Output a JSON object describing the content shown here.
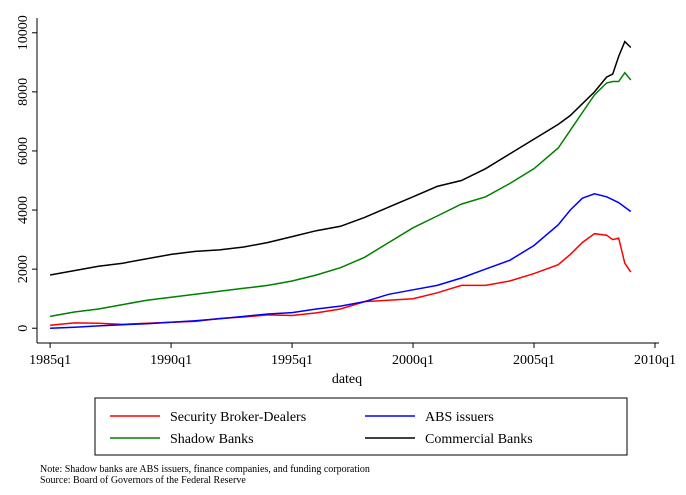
{
  "chart_data": {
    "type": "line",
    "x": [
      "1985q1",
      "1986q1",
      "1987q1",
      "1988q1",
      "1989q1",
      "1990q1",
      "1991q1",
      "1992q1",
      "1993q1",
      "1994q1",
      "1995q1",
      "1996q1",
      "1997q1",
      "1998q1",
      "1999q1",
      "2000q1",
      "2001q1",
      "2002q1",
      "2003q1",
      "2004q1",
      "2005q1",
      "2006q1",
      "2006q3",
      "2007q1",
      "2007q3",
      "2008q1",
      "2008q2",
      "2008q3",
      "2008q4",
      "2009q1"
    ],
    "series": [
      {
        "name": "Security Broker-Dealers",
        "color": "#ff0000",
        "values": [
          100,
          180,
          170,
          130,
          170,
          200,
          230,
          330,
          380,
          450,
          430,
          520,
          650,
          900,
          950,
          1000,
          1200,
          1450,
          1450,
          1600,
          1850,
          2150,
          2500,
          2900,
          3200,
          3150,
          3000,
          3050,
          2200,
          1900
        ]
      },
      {
        "name": "ABS issuers",
        "color": "#0000ff",
        "values": [
          0,
          30,
          80,
          120,
          150,
          200,
          250,
          320,
          400,
          480,
          530,
          650,
          750,
          900,
          1150,
          1300,
          1450,
          1700,
          2000,
          2300,
          2800,
          3500,
          4000,
          4400,
          4550,
          4450,
          4350,
          4250,
          4100,
          3950
        ]
      },
      {
        "name": "Shadow Banks",
        "color": "#008000",
        "values": [
          400,
          550,
          650,
          800,
          950,
          1050,
          1150,
          1250,
          1350,
          1450,
          1600,
          1800,
          2050,
          2400,
          2900,
          3400,
          3800,
          4200,
          4450,
          4900,
          5400,
          6100,
          6700,
          7300,
          7900,
          8300,
          8350,
          8350,
          8650,
          8400
        ]
      },
      {
        "name": "Commercial Banks",
        "color": "#000000",
        "values": [
          1800,
          1950,
          2100,
          2200,
          2350,
          2500,
          2600,
          2650,
          2750,
          2900,
          3100,
          3300,
          3450,
          3750,
          4100,
          4450,
          4800,
          5000,
          5400,
          5900,
          6400,
          6900,
          7200,
          7600,
          8000,
          8500,
          8600,
          9200,
          9700,
          9500
        ]
      }
    ],
    "xlabel": "dateq",
    "xlim": [
      "1984q3",
      "2010q1"
    ],
    "xticks": [
      "1985q1",
      "1990q1",
      "1995q1",
      "2000q1",
      "2005q1",
      "2010q1"
    ],
    "ylim": [
      -500,
      10500
    ],
    "yticks": [
      0,
      2000,
      4000,
      6000,
      8000,
      10000
    ],
    "notes": [
      "Note: Shadow banks are ABS issuers, finance companies, and funding corporation",
      "Source: Board of Governors of the Federal Reserve"
    ]
  }
}
